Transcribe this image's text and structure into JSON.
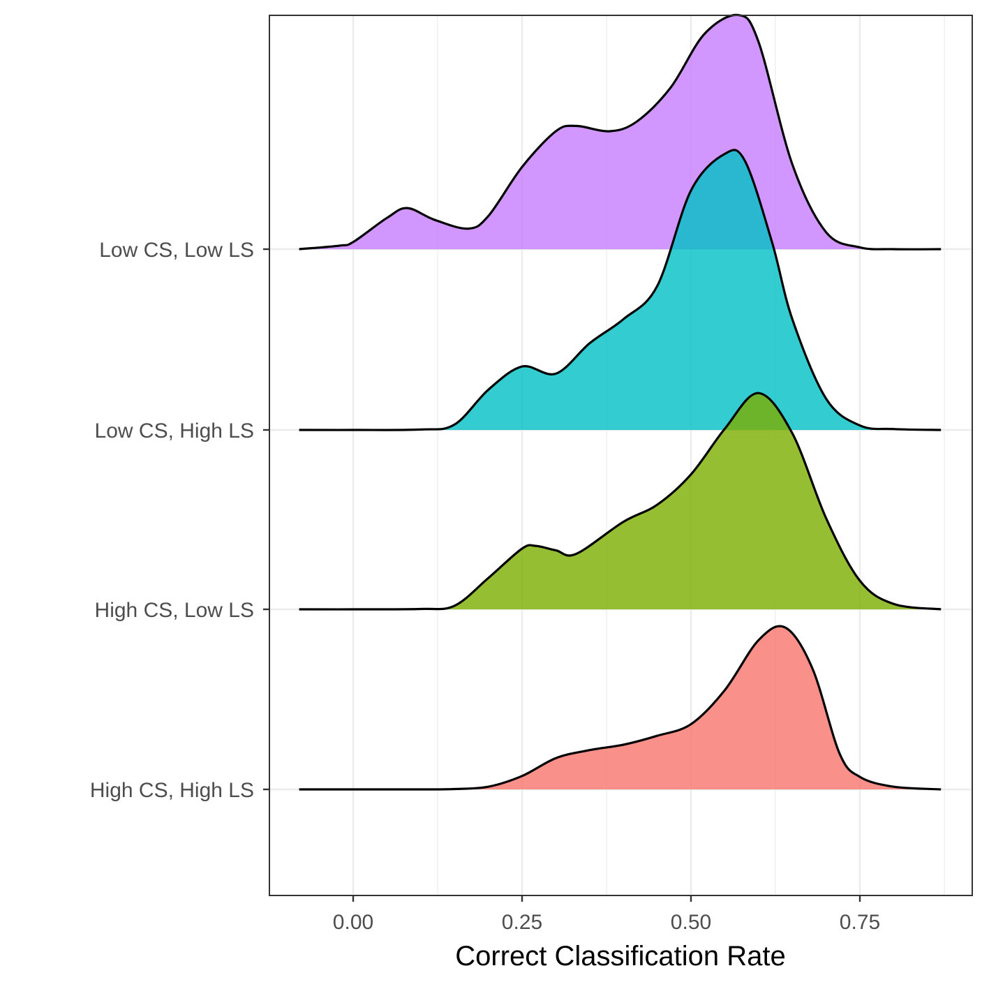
{
  "chart_data": {
    "type": "ridgeline",
    "title": "",
    "xlabel": "Correct Classification Rate",
    "ylabel": "",
    "xlim": [
      -0.125,
      0.91
    ],
    "x_ticks": [
      0.0,
      0.25,
      0.5,
      0.75
    ],
    "x_tick_labels": [
      "0.00",
      "0.25",
      "0.50",
      "0.75"
    ],
    "x_minor_ticks": [
      0.125,
      0.375,
      0.625,
      0.875
    ],
    "grid": true,
    "legend": "none",
    "categories": [
      "High CS, High LS",
      "High CS, Low LS",
      "Low CS, High LS",
      "Low CS, Low LS"
    ],
    "series": [
      {
        "name": "High CS, High LS",
        "color": "#F8766D",
        "x": [
          -0.08,
          0.0,
          0.1,
          0.15,
          0.2,
          0.25,
          0.3,
          0.35,
          0.4,
          0.45,
          0.5,
          0.55,
          0.6,
          0.64,
          0.68,
          0.72,
          0.75,
          0.8,
          0.87
        ],
        "density": [
          0.0,
          0.0,
          0.0,
          0.004,
          0.03,
          0.15,
          0.35,
          0.44,
          0.5,
          0.6,
          0.73,
          1.11,
          1.67,
          1.81,
          1.35,
          0.4,
          0.14,
          0.03,
          0.0
        ]
      },
      {
        "name": "High CS, Low LS",
        "color": "#7CAE00",
        "x": [
          -0.08,
          0.0,
          0.1,
          0.15,
          0.2,
          0.25,
          0.27,
          0.3,
          0.33,
          0.4,
          0.45,
          0.5,
          0.55,
          0.6,
          0.65,
          0.7,
          0.75,
          0.8,
          0.87
        ],
        "density": [
          0.0,
          0.0,
          0.004,
          0.04,
          0.35,
          0.68,
          0.71,
          0.66,
          0.62,
          0.98,
          1.17,
          1.51,
          2.02,
          2.42,
          1.97,
          1.02,
          0.32,
          0.06,
          0.0
        ]
      },
      {
        "name": "Low CS, High LS",
        "color": "#00BFC4",
        "x": [
          -0.08,
          0.0,
          0.1,
          0.15,
          0.2,
          0.25,
          0.3,
          0.35,
          0.4,
          0.45,
          0.5,
          0.55,
          0.58,
          0.62,
          0.65,
          0.7,
          0.75,
          0.8,
          0.87
        ],
        "density": [
          0.0,
          0.0,
          0.005,
          0.06,
          0.45,
          0.71,
          0.63,
          0.97,
          1.24,
          1.61,
          2.68,
          3.09,
          3.01,
          2.1,
          1.24,
          0.35,
          0.05,
          0.01,
          0.0
        ]
      },
      {
        "name": "Low CS, Low LS",
        "color": "#C77CFF",
        "x": [
          -0.08,
          -0.02,
          0.0,
          0.05,
          0.08,
          0.12,
          0.17,
          0.2,
          0.25,
          0.3,
          0.33,
          0.38,
          0.42,
          0.47,
          0.52,
          0.57,
          0.6,
          0.65,
          0.7,
          0.75,
          0.8,
          0.87
        ],
        "density": [
          0.0,
          0.04,
          0.08,
          0.35,
          0.46,
          0.33,
          0.23,
          0.37,
          0.92,
          1.32,
          1.38,
          1.32,
          1.43,
          1.81,
          2.41,
          2.62,
          2.32,
          0.95,
          0.19,
          0.02,
          0.0,
          0.0
        ]
      }
    ]
  }
}
